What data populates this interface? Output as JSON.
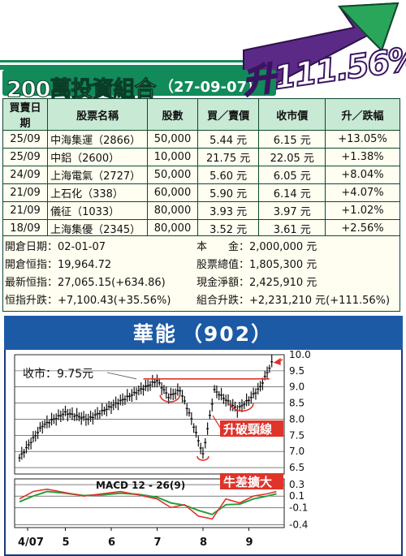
{
  "header": {
    "title": "200萬投資組合",
    "date": "（27-09-07）",
    "gain": "升111.56%"
  },
  "table": {
    "columns": [
      "買賣日期",
      "股票名稱",
      "股數",
      "買／賣價",
      "收市價",
      "升／跌幅"
    ],
    "rows": [
      [
        "25/09",
        "中海集運（2866）",
        "50,000",
        "5.44 元",
        "6.15 元",
        "+13.05%"
      ],
      [
        "25/09",
        "中鋁（2600）",
        "10,000",
        "21.75 元",
        "22.05 元",
        "+1.38%"
      ],
      [
        "24/09",
        "上海電氣（2727）",
        "50,000",
        "5.60 元",
        "6.05 元",
        "+8.04%"
      ],
      [
        "21/09",
        "上石化（338）",
        "60,000",
        "5.90 元",
        "6.14 元",
        "+4.07%"
      ],
      [
        "21/09",
        "儀征（1033）",
        "80,000",
        "3.93 元",
        "3.97 元",
        "+1.02%"
      ],
      [
        "18/09",
        "上海集優（2345）",
        "80,000",
        "3.52 元",
        "3.61 元",
        "+2.56%"
      ]
    ]
  },
  "summary": {
    "open_date": "開倉日期：02-01-07",
    "open_index": "開倉恒指：19,964.72",
    "latest_index": "最新恒指：27,065.15(+634.86)",
    "index_change": "恒指升跌：+7,100.43(+35.56%)",
    "capital": "本　　金：2,000,000 元",
    "stock_value": "股票總值：1,805,300 元",
    "cash": "現金淨額：2,425,910 元",
    "portfolio_change": "組合升跌：+2,231,210 元(+111.56%)"
  },
  "chart_header": {
    "name": "華能",
    "code": "（902）"
  },
  "chart_data": {
    "type": "line",
    "title": "華能（902）",
    "close_label": "收市：9.75元",
    "annotations": [
      "升破頸線",
      "牛差擴大"
    ],
    "x_ticks": [
      "4/07",
      "5",
      "6",
      "7",
      "8",
      "9"
    ],
    "price": {
      "ylim": [
        6.3,
        10.0
      ],
      "yticks": [
        6.5,
        7.0,
        7.5,
        8.0,
        8.5,
        9.0,
        9.5,
        10.0
      ],
      "ytick_labels": [
        "6.5",
        "7.0",
        "7.5",
        "8.0",
        "8.5",
        "9.0",
        "9.5",
        "10.0"
      ],
      "months": [
        0.0,
        0.5,
        1.0,
        1.5,
        2.0,
        2.5,
        3.0,
        3.25,
        3.5,
        3.75,
        4.0,
        4.25,
        4.5,
        4.75,
        5.0,
        5.25,
        5.5
      ],
      "close": [
        6.8,
        7.8,
        8.2,
        8.0,
        8.4,
        8.8,
        9.2,
        8.7,
        8.9,
        8.0,
        6.9,
        8.9,
        8.6,
        8.3,
        8.6,
        9.0,
        9.75
      ]
    },
    "macd": {
      "label": "MACD 12 - 26(9)",
      "ylim": [
        -0.45,
        0.4
      ],
      "yticks": [
        0.3,
        0.1,
        -0.1,
        -0.4
      ],
      "ytick_labels": [
        "0.3",
        "0.1",
        "-0.1",
        "-0.4"
      ],
      "months": [
        0,
        0.3,
        0.6,
        1.0,
        1.4,
        1.8,
        2.2,
        2.6,
        3.0,
        3.3,
        3.6,
        3.9,
        4.2,
        4.5,
        4.8,
        5.1,
        5.4,
        5.6
      ],
      "macd": [
        0.05,
        0.18,
        0.22,
        0.16,
        0.1,
        0.14,
        0.18,
        0.12,
        0.05,
        -0.1,
        -0.05,
        -0.25,
        -0.3,
        0.05,
        -0.02,
        0.1,
        0.14,
        0.18
      ],
      "signal": [
        0.0,
        0.1,
        0.18,
        0.15,
        0.11,
        0.12,
        0.15,
        0.13,
        0.08,
        -0.02,
        -0.06,
        -0.15,
        -0.22,
        -0.05,
        -0.04,
        0.05,
        0.1,
        0.14
      ],
      "colors": {
        "macd": "#e0332a",
        "signal": "#2a9e3e"
      }
    },
    "colors": {
      "candle": "#111111",
      "annotation": "#e0332a",
      "neckline": "#e0332a"
    }
  }
}
